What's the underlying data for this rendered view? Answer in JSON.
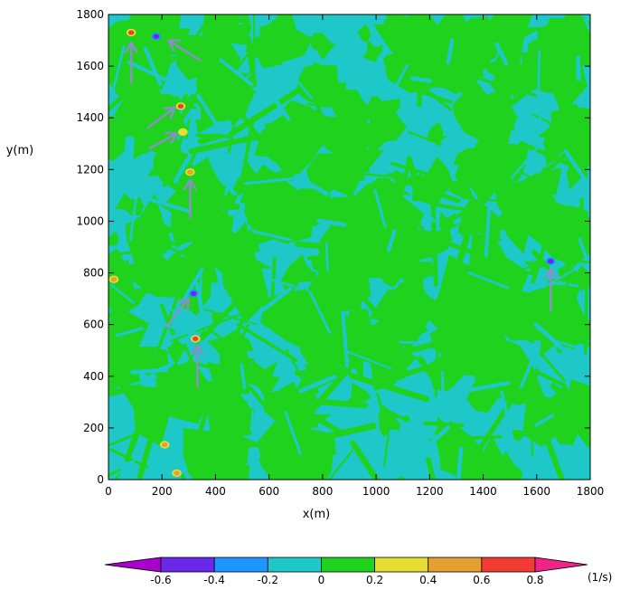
{
  "chart_data": {
    "type": "heatmap",
    "xlabel": "x(m)",
    "ylabel": "y(m)",
    "xlim": [
      0,
      1800
    ],
    "ylim": [
      0,
      1800
    ],
    "x_ticks": [
      0,
      200,
      400,
      600,
      800,
      1000,
      1200,
      1400,
      1600,
      1800
    ],
    "y_ticks": [
      0,
      200,
      400,
      600,
      800,
      1000,
      1200,
      1400,
      1600,
      1800
    ],
    "x_tick_labels": [
      "0",
      "200",
      "400",
      "600",
      "800",
      "1000",
      "1200",
      "1400",
      "1600",
      "1800"
    ],
    "y_tick_labels": [
      "0",
      "200",
      "400",
      "600",
      "800",
      "1000",
      "1200",
      "1400",
      "1600",
      "1800"
    ],
    "colorbar": {
      "unit": "(1/s)",
      "tick_labels": [
        "-0.6",
        "-0.4",
        "-0.2",
        "0",
        "0.2",
        "0.4",
        "0.6",
        "0.8"
      ],
      "levels": [
        -0.6,
        -0.4,
        -0.2,
        0,
        0.2,
        0.4,
        0.6,
        0.8
      ],
      "colors": [
        "#aa00cc",
        "#6a28e8",
        "#1e96ff",
        "#1ec8c8",
        "#1ed21e",
        "#e6dc32",
        "#e6a032",
        "#f03c32",
        "#f0238c"
      ]
    },
    "background_bands": [
      {
        "range": [
          -0.2,
          0
        ],
        "color": "#1ec8c8"
      },
      {
        "range": [
          0,
          0.2
        ],
        "color": "#1ed21e"
      }
    ],
    "features": [
      {
        "x": 85,
        "y": 1730,
        "value": 0.75,
        "kind": "positive"
      },
      {
        "x": 178,
        "y": 1715,
        "value": -0.55,
        "kind": "negative"
      },
      {
        "x": 270,
        "y": 1445,
        "value": 0.7,
        "kind": "positive"
      },
      {
        "x": 278,
        "y": 1345,
        "value": 0.35,
        "kind": "positive"
      },
      {
        "x": 305,
        "y": 1190,
        "value": 0.45,
        "kind": "positive"
      },
      {
        "x": 318,
        "y": 720,
        "value": -0.55,
        "kind": "negative"
      },
      {
        "x": 325,
        "y": 545,
        "value": 0.75,
        "kind": "positive"
      },
      {
        "x": 1652,
        "y": 845,
        "value": -0.5,
        "kind": "negative"
      },
      {
        "x": 20,
        "y": 775,
        "value": 0.45,
        "kind": "positive"
      },
      {
        "x": 210,
        "y": 135,
        "value": 0.45,
        "kind": "positive"
      },
      {
        "x": 255,
        "y": 25,
        "value": 0.45,
        "kind": "positive"
      }
    ],
    "arrows": [
      {
        "from": [
          85,
          1530
        ],
        "to": [
          85,
          1690
        ]
      },
      {
        "from": [
          345,
          1620
        ],
        "to": [
          225,
          1700
        ]
      },
      {
        "from": [
          145,
          1360
        ],
        "to": [
          248,
          1440
        ]
      },
      {
        "from": [
          150,
          1280
        ],
        "to": [
          255,
          1340
        ]
      },
      {
        "from": [
          305,
          1010
        ],
        "to": [
          305,
          1160
        ]
      },
      {
        "from": [
          215,
          590
        ],
        "to": [
          300,
          700
        ]
      },
      {
        "from": [
          332,
          355
        ],
        "to": [
          332,
          520
        ]
      },
      {
        "from": [
          1652,
          650
        ],
        "to": [
          1652,
          815
        ]
      }
    ]
  }
}
